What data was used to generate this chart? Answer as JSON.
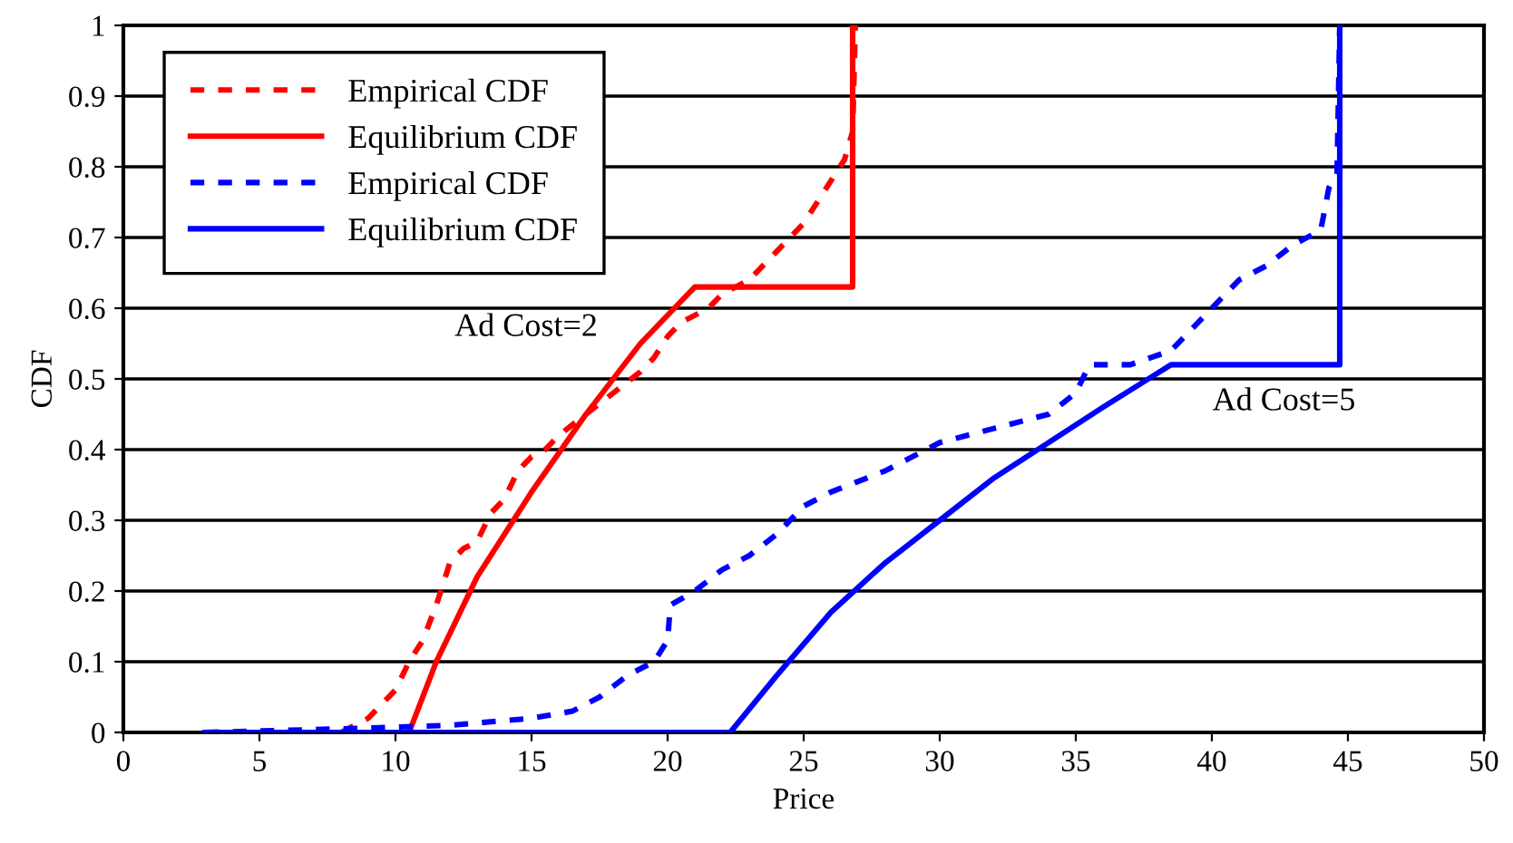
{
  "chart_data": {
    "type": "line",
    "xlabel": "Price",
    "ylabel": "CDF",
    "xlim": [
      0,
      50
    ],
    "xticks": [
      0,
      5,
      10,
      15,
      20,
      25,
      30,
      35,
      40,
      45,
      50
    ],
    "ylim": [
      0,
      1
    ],
    "yticks": [
      0,
      0.1,
      0.2,
      0.3,
      0.4,
      0.5,
      0.6,
      0.7,
      0.8,
      0.9,
      1
    ],
    "grid": "y",
    "legend": "top left",
    "series": [
      {
        "name": "Empirical CDF",
        "color": "#ff0000",
        "line_style": "dashed",
        "x": [
          8,
          9,
          10,
          10.5,
          11,
          11.5,
          12,
          12.5,
          13,
          13.5,
          14,
          14.5,
          15,
          15.5,
          16,
          17,
          18,
          19,
          19.5,
          20,
          20.5,
          21.5,
          22,
          23,
          24,
          25,
          26,
          26.5,
          26.8,
          26.9
        ],
        "values": [
          0,
          0.02,
          0.06,
          0.1,
          0.13,
          0.18,
          0.24,
          0.26,
          0.27,
          0.31,
          0.33,
          0.37,
          0.39,
          0.4,
          0.42,
          0.45,
          0.48,
          0.51,
          0.53,
          0.56,
          0.58,
          0.6,
          0.62,
          0.64,
          0.68,
          0.72,
          0.78,
          0.81,
          0.85,
          1.0
        ]
      },
      {
        "name": "Equilibrium CDF",
        "color": "#ff0000",
        "line_style": "solid",
        "x": [
          10.5,
          11.5,
          13,
          15,
          17,
          19,
          21,
          26.8,
          26.8
        ],
        "values": [
          0,
          0.1,
          0.22,
          0.34,
          0.45,
          0.55,
          0.63,
          0.63,
          1.0
        ]
      },
      {
        "name": "Empirical CDF",
        "color": "#0000ff",
        "line_style": "dashed",
        "x": [
          3,
          8,
          12,
          15,
          16.5,
          17.5,
          18.5,
          19.5,
          20,
          20.1,
          21,
          22,
          23,
          24,
          25,
          26,
          28,
          30,
          32,
          34,
          35,
          35.5,
          37,
          38.5,
          39,
          40,
          41,
          42,
          43,
          44,
          44.3,
          44.6,
          44.7
        ],
        "values": [
          0,
          0.005,
          0.01,
          0.02,
          0.03,
          0.05,
          0.08,
          0.1,
          0.13,
          0.18,
          0.2,
          0.23,
          0.25,
          0.28,
          0.32,
          0.34,
          0.37,
          0.41,
          0.43,
          0.45,
          0.48,
          0.52,
          0.52,
          0.54,
          0.56,
          0.6,
          0.64,
          0.66,
          0.69,
          0.71,
          0.77,
          0.79,
          1.0
        ]
      },
      {
        "name": "Equilibrium CDF",
        "color": "#0000ff",
        "line_style": "solid",
        "x": [
          3,
          22.3,
          24,
          26,
          28,
          30,
          32,
          34,
          36,
          38.5,
          44.7,
          44.7
        ],
        "values": [
          0,
          0,
          0.08,
          0.17,
          0.24,
          0.3,
          0.36,
          0.41,
          0.46,
          0.52,
          0.52,
          1.0
        ]
      }
    ],
    "annotations": [
      "Ad Cost=2",
      "Ad Cost=5"
    ]
  }
}
